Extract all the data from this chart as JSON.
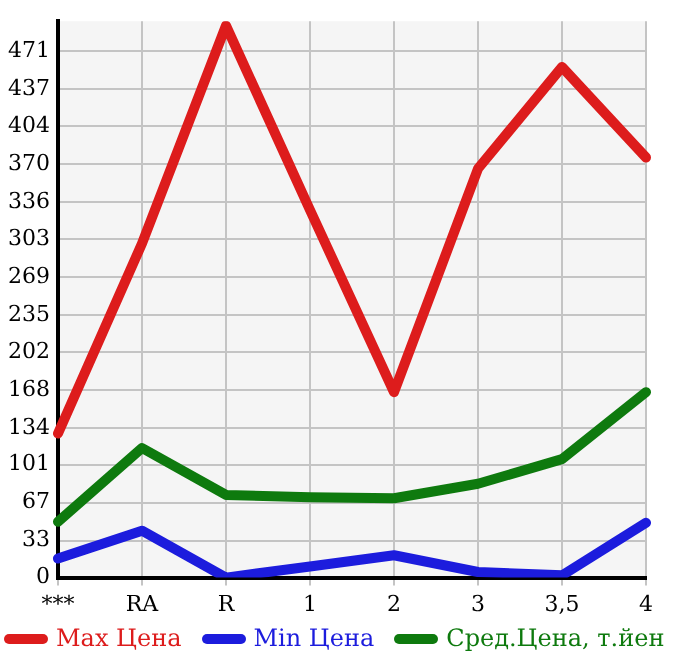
{
  "chart_data": {
    "type": "line",
    "categories": [
      "***",
      "RA",
      "R",
      "1",
      "2",
      "3",
      "3,5",
      "4"
    ],
    "series": [
      {
        "name": "Max Цена",
        "color": "#dd1c1c",
        "values": [
          129,
          299,
          494,
          329,
          166,
          366,
          457,
          376
        ]
      },
      {
        "name": "Min Цена",
        "color": "#1c1cdd",
        "values": [
          17,
          42,
          0,
          10,
          20,
          5,
          2,
          49
        ]
      },
      {
        "name": "Сред.Цена, т.йен",
        "color": "#0e7a0e",
        "values": [
          50,
          116,
          74,
          72,
          71,
          84,
          106,
          166
        ]
      }
    ],
    "ylim": [
      0,
      498
    ],
    "yticks": [
      0,
      33,
      67,
      101,
      134,
      168,
      202,
      235,
      269,
      303,
      336,
      370,
      404,
      437,
      471
    ],
    "grid": true,
    "legend": "bottom",
    "marker": "none",
    "line_style": "solid"
  }
}
